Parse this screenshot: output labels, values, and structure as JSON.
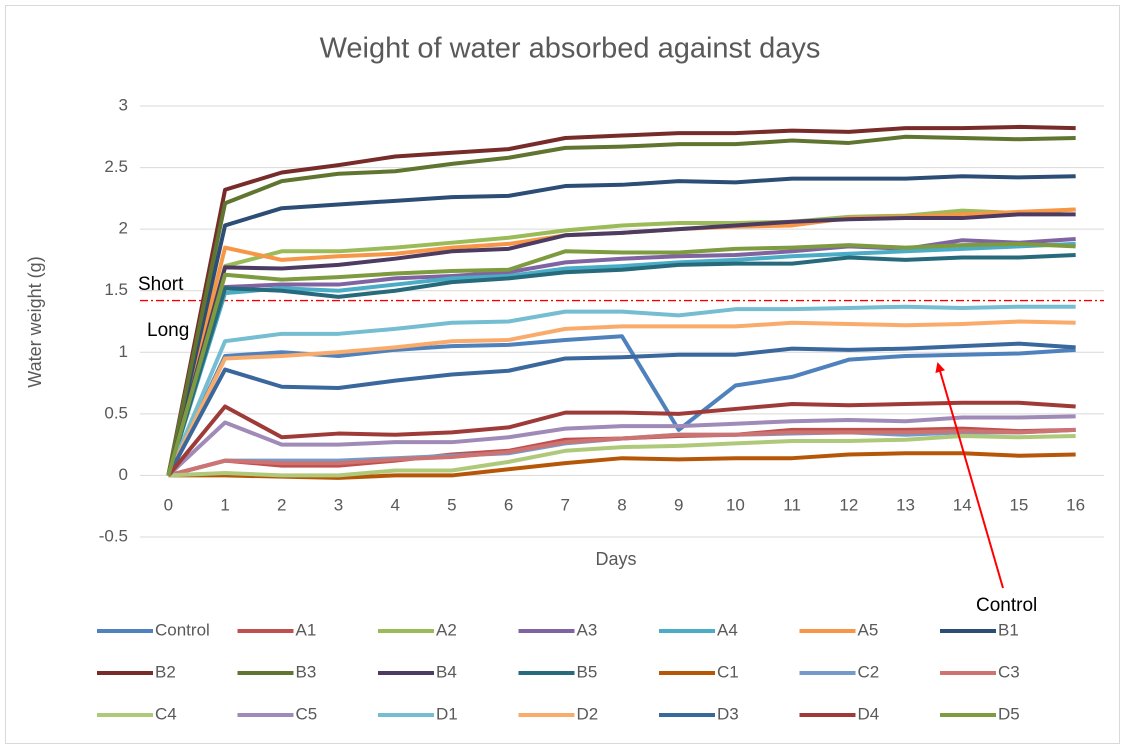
{
  "chart_data": {
    "type": "line",
    "title": "Weight of water absorbed against days",
    "x_label": "Days",
    "y_label": "Water weight (g)",
    "categories": [
      0,
      1,
      2,
      3,
      4,
      5,
      6,
      7,
      8,
      9,
      10,
      11,
      12,
      13,
      14,
      15,
      16
    ],
    "ylim": [
      -0.5,
      3
    ],
    "yticks": [
      -0.5,
      0,
      0.5,
      1,
      1.5,
      2,
      2.5,
      3
    ],
    "grid": true,
    "legend": "bottom",
    "reference_line": 1.42,
    "annotations": [
      "Short",
      "Long",
      "Control"
    ],
    "series": [
      {
        "name": "Control",
        "color": "#4f81bd",
        "values": [
          0,
          0.97,
          1.0,
          0.97,
          1.02,
          1.05,
          1.06,
          1.1,
          1.13,
          0.37,
          0.73,
          0.8,
          0.94,
          0.97,
          0.98,
          0.99,
          1.02
        ]
      },
      {
        "name": "A1",
        "color": "#c0504d",
        "values": [
          0,
          0.12,
          0.08,
          0.08,
          0.12,
          0.17,
          0.2,
          0.29,
          0.3,
          0.32,
          0.33,
          0.37,
          0.37,
          0.37,
          0.38,
          0.36,
          0.37
        ]
      },
      {
        "name": "A2",
        "color": "#9bbb59",
        "values": [
          0,
          1.7,
          1.82,
          1.82,
          1.85,
          1.89,
          1.93,
          1.99,
          2.03,
          2.05,
          2.05,
          2.06,
          2.1,
          2.11,
          2.15,
          2.13,
          2.16
        ]
      },
      {
        "name": "A3",
        "color": "#8064a2",
        "values": [
          0,
          1.53,
          1.55,
          1.55,
          1.6,
          1.62,
          1.65,
          1.73,
          1.76,
          1.78,
          1.79,
          1.82,
          1.86,
          1.84,
          1.91,
          1.89,
          1.92
        ]
      },
      {
        "name": "A4",
        "color": "#4bacc6",
        "values": [
          0,
          1.48,
          1.52,
          1.5,
          1.55,
          1.6,
          1.62,
          1.68,
          1.7,
          1.73,
          1.75,
          1.78,
          1.8,
          1.82,
          1.84,
          1.86,
          1.88
        ]
      },
      {
        "name": "A5",
        "color": "#f79646",
        "values": [
          0,
          1.85,
          1.75,
          1.78,
          1.8,
          1.85,
          1.88,
          1.95,
          1.97,
          2.0,
          2.02,
          2.03,
          2.09,
          2.1,
          2.12,
          2.14,
          2.16
        ]
      },
      {
        "name": "B1",
        "color": "#2c4d75",
        "values": [
          0,
          2.03,
          2.17,
          2.2,
          2.23,
          2.26,
          2.27,
          2.35,
          2.36,
          2.39,
          2.38,
          2.41,
          2.41,
          2.41,
          2.43,
          2.42,
          2.43
        ]
      },
      {
        "name": "B2",
        "color": "#772c2a",
        "values": [
          0,
          2.32,
          2.46,
          2.52,
          2.59,
          2.62,
          2.65,
          2.74,
          2.76,
          2.78,
          2.78,
          2.8,
          2.79,
          2.82,
          2.82,
          2.83,
          2.82
        ]
      },
      {
        "name": "B3",
        "color": "#5f7530",
        "values": [
          0,
          2.21,
          2.39,
          2.45,
          2.47,
          2.53,
          2.58,
          2.66,
          2.67,
          2.69,
          2.69,
          2.72,
          2.7,
          2.75,
          2.74,
          2.73,
          2.74
        ]
      },
      {
        "name": "B4",
        "color": "#4d3b62",
        "values": [
          0,
          1.69,
          1.68,
          1.71,
          1.76,
          1.82,
          1.84,
          1.95,
          1.97,
          2.0,
          2.03,
          2.06,
          2.08,
          2.09,
          2.09,
          2.12,
          2.12
        ]
      },
      {
        "name": "B5",
        "color": "#276a7c",
        "values": [
          0,
          1.52,
          1.5,
          1.45,
          1.5,
          1.57,
          1.6,
          1.65,
          1.67,
          1.71,
          1.72,
          1.72,
          1.77,
          1.75,
          1.77,
          1.77,
          1.79
        ]
      },
      {
        "name": "C1",
        "color": "#b65708",
        "values": [
          0,
          0.0,
          -0.01,
          -0.02,
          0.0,
          0.0,
          0.05,
          0.1,
          0.14,
          0.13,
          0.14,
          0.14,
          0.17,
          0.18,
          0.18,
          0.16,
          0.17
        ]
      },
      {
        "name": "C2",
        "color": "#729aca",
        "values": [
          0,
          0.12,
          0.12,
          0.12,
          0.14,
          0.16,
          0.18,
          0.26,
          0.3,
          0.33,
          0.33,
          0.34,
          0.35,
          0.33,
          0.35,
          0.35,
          0.37
        ]
      },
      {
        "name": "C3",
        "color": "#cd7371",
        "values": [
          0,
          0.12,
          0.1,
          0.1,
          0.13,
          0.15,
          0.19,
          0.27,
          0.3,
          0.33,
          0.33,
          0.35,
          0.35,
          0.35,
          0.36,
          0.35,
          0.37
        ]
      },
      {
        "name": "C4",
        "color": "#afc97a",
        "values": [
          0,
          0.02,
          0.0,
          0.0,
          0.04,
          0.04,
          0.11,
          0.2,
          0.23,
          0.24,
          0.26,
          0.28,
          0.28,
          0.29,
          0.32,
          0.31,
          0.32
        ]
      },
      {
        "name": "C5",
        "color": "#a08ab8",
        "values": [
          0,
          0.43,
          0.25,
          0.25,
          0.27,
          0.27,
          0.31,
          0.38,
          0.4,
          0.4,
          0.42,
          0.44,
          0.45,
          0.44,
          0.47,
          0.47,
          0.48
        ]
      },
      {
        "name": "D1",
        "color": "#75bdd1",
        "values": [
          0,
          1.09,
          1.15,
          1.15,
          1.19,
          1.24,
          1.25,
          1.33,
          1.33,
          1.3,
          1.35,
          1.35,
          1.36,
          1.37,
          1.36,
          1.37,
          1.37
        ]
      },
      {
        "name": "D2",
        "color": "#f9ab6b",
        "values": [
          0,
          0.95,
          0.97,
          1.0,
          1.04,
          1.09,
          1.1,
          1.19,
          1.21,
          1.21,
          1.21,
          1.24,
          1.23,
          1.22,
          1.23,
          1.25,
          1.24
        ]
      },
      {
        "name": "D3",
        "color": "#3a679c",
        "values": [
          0,
          0.86,
          0.72,
          0.71,
          0.77,
          0.82,
          0.85,
          0.95,
          0.96,
          0.98,
          0.98,
          1.03,
          1.02,
          1.03,
          1.05,
          1.07,
          1.04
        ]
      },
      {
        "name": "D4",
        "color": "#9e3b39",
        "values": [
          0,
          0.56,
          0.31,
          0.34,
          0.33,
          0.35,
          0.39,
          0.51,
          0.51,
          0.5,
          0.54,
          0.58,
          0.57,
          0.58,
          0.59,
          0.59,
          0.56
        ]
      },
      {
        "name": "D5",
        "color": "#7e9b40",
        "values": [
          0,
          1.63,
          1.59,
          1.61,
          1.64,
          1.66,
          1.67,
          1.82,
          1.81,
          1.81,
          1.84,
          1.85,
          1.87,
          1.85,
          1.87,
          1.88,
          1.86
        ]
      }
    ]
  }
}
